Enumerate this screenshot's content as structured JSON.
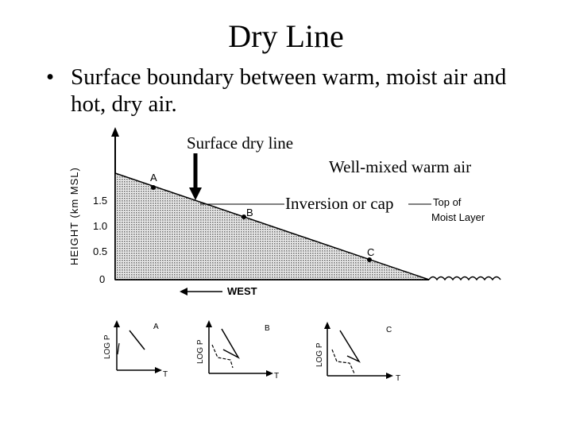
{
  "slide": {
    "title": "Dry Line",
    "bullet_symbol": "•",
    "bullet_text": "Surface boundary between warm, moist air and hot, dry air."
  },
  "diagram": {
    "surface_dry_line_label": "Surface dry line",
    "well_mixed_label": "Well-mixed warm air",
    "inversion_label": "Inversion or cap",
    "top_of_moist_layer_line1": "Top of",
    "top_of_moist_layer_line2": "Moist Layer",
    "y_axis_label": "HEIGHT (km MSL)",
    "y_ticks": [
      "1.5",
      "1.0",
      "0.5",
      "0"
    ],
    "point_a": "A",
    "point_b": "B",
    "point_c": "C",
    "west_label": "WEST"
  },
  "soundings": [
    {
      "label": "A",
      "y_label": "LOG P",
      "x_label": "T"
    },
    {
      "label": "B",
      "y_label": "LOG P",
      "x_label": "T"
    },
    {
      "label": "C",
      "y_label": "LOG P",
      "x_label": "T"
    }
  ]
}
